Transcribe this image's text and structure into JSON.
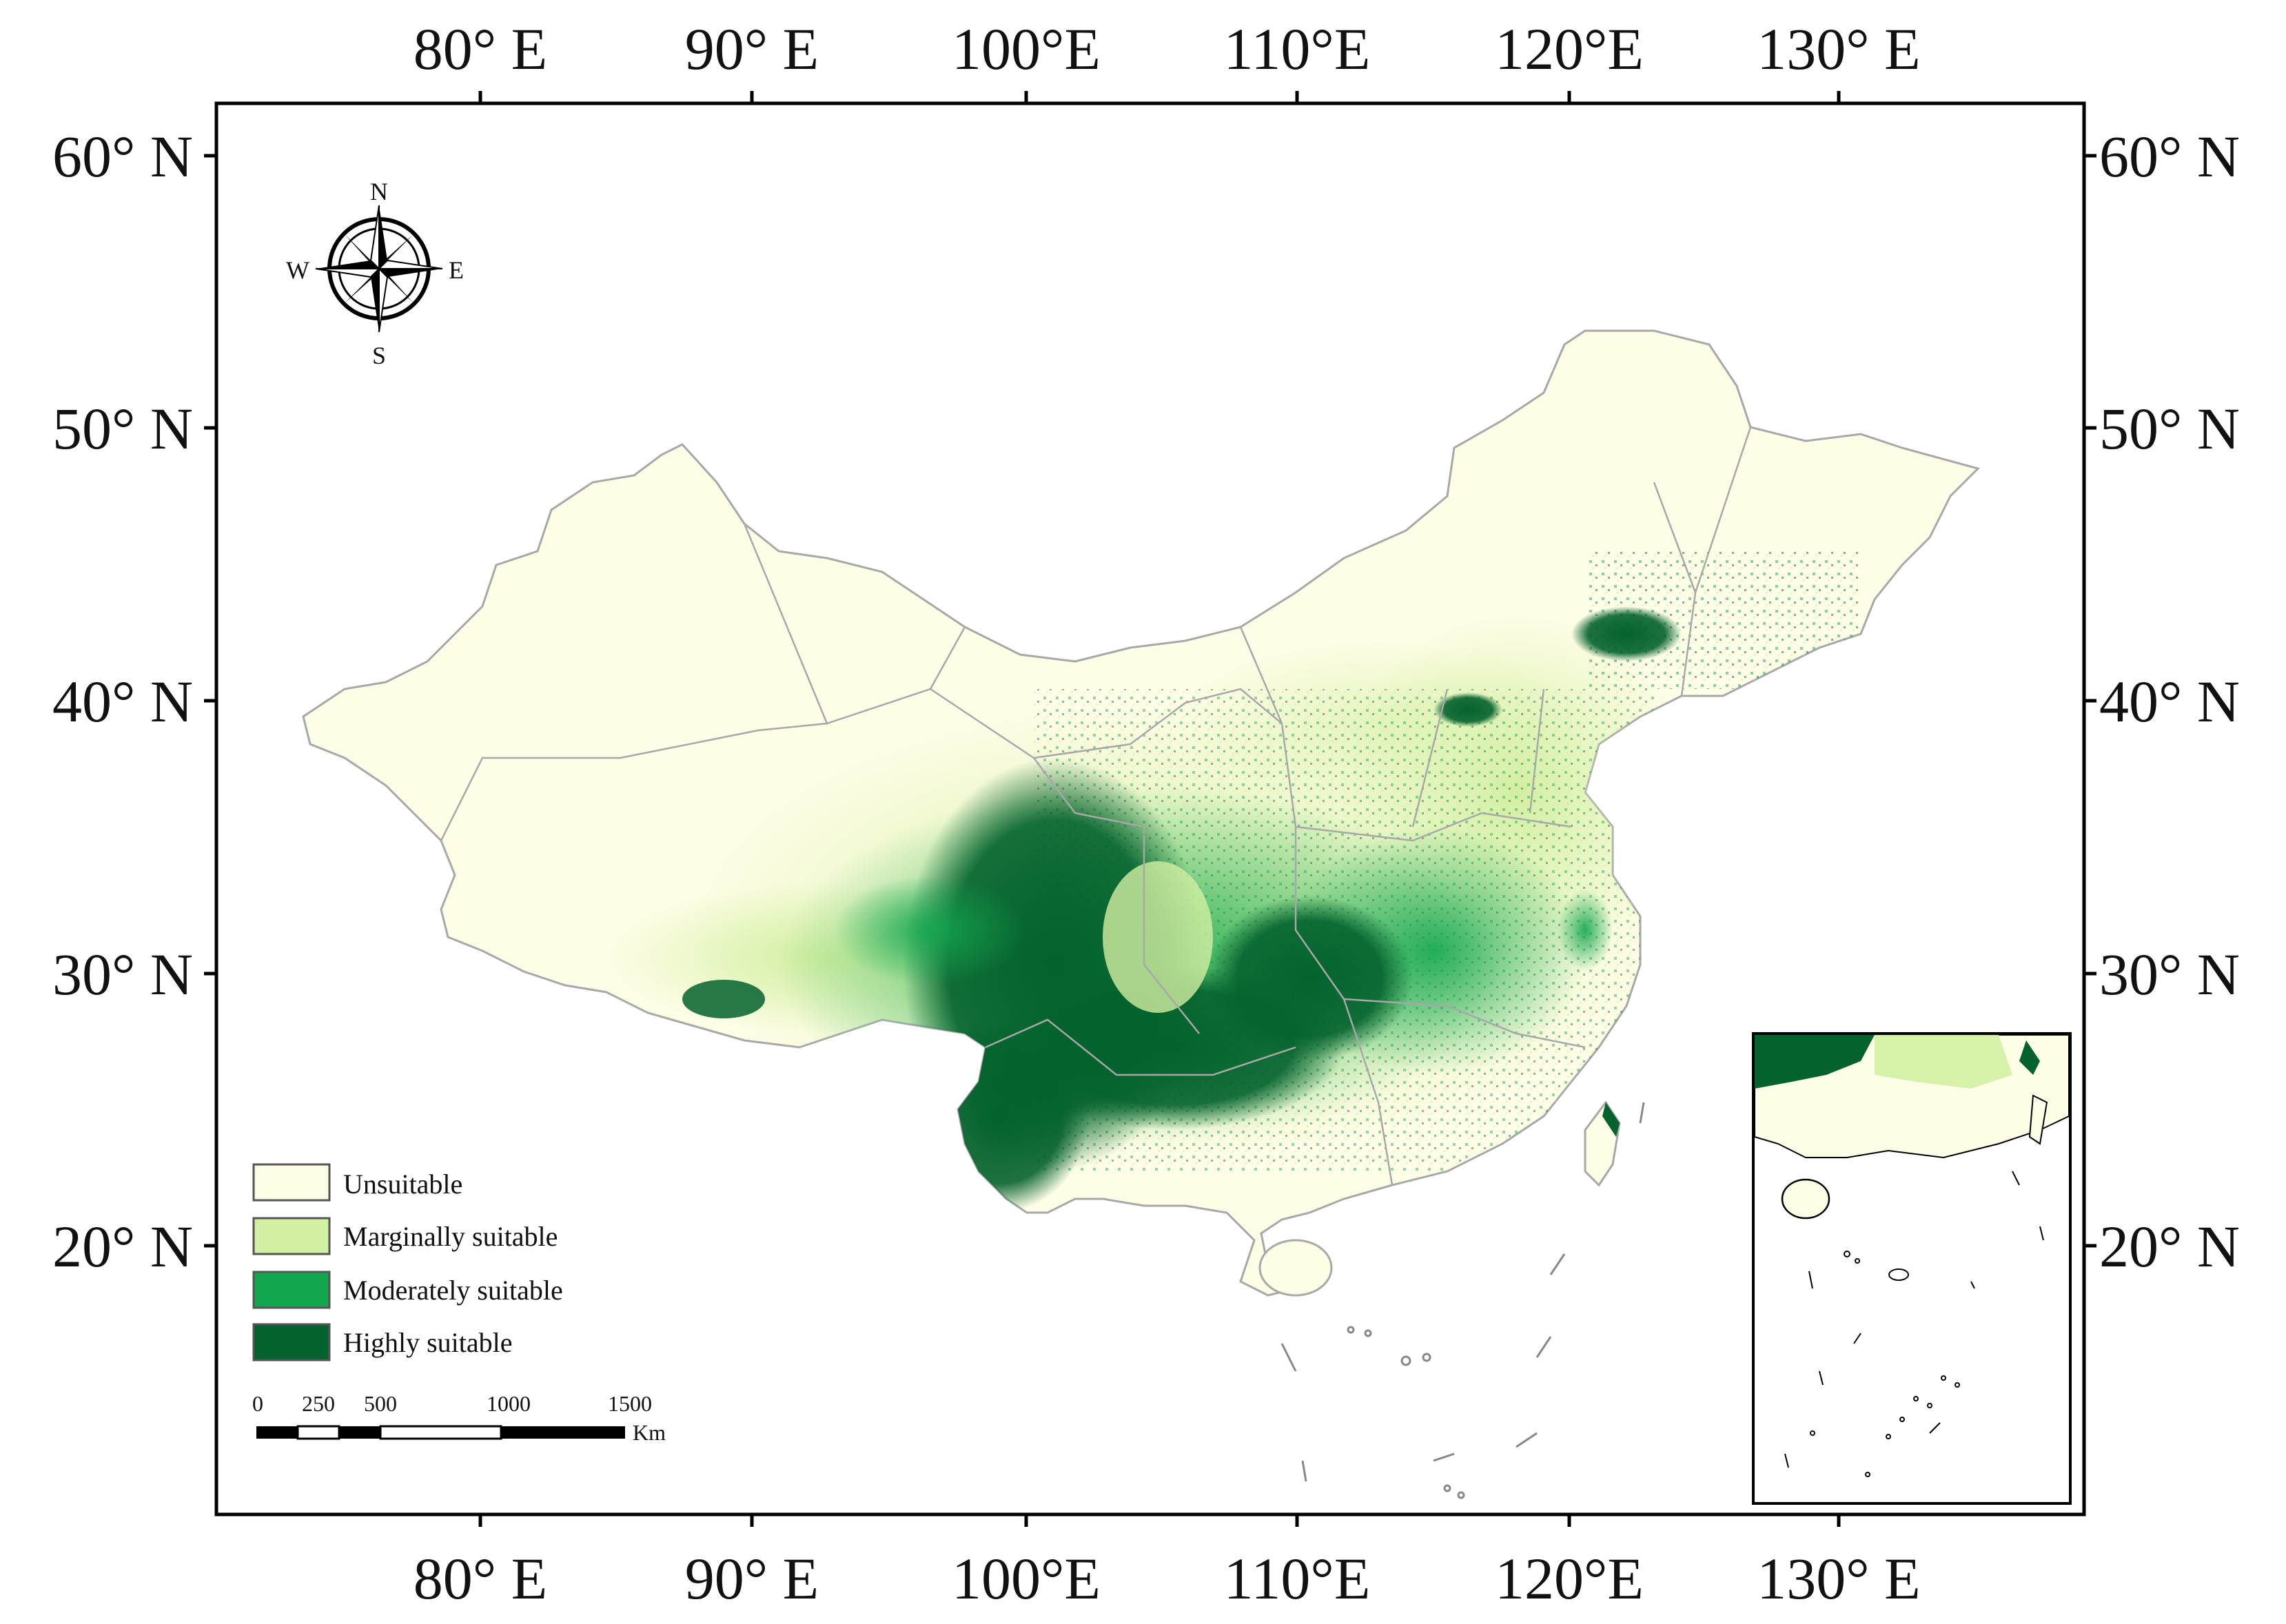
{
  "longitude_labels": [
    "80° E",
    "90° E",
    "100°E",
    "110°E",
    "120°E",
    "130° E"
  ],
  "latitude_labels": [
    "60° N",
    "50° N",
    "40° N",
    "30° N",
    "20° N"
  ],
  "compass": {
    "north": "N",
    "south": "S",
    "east": "E",
    "west": "W"
  },
  "legend": [
    {
      "label": "Unsuitable",
      "color": "#fefde6"
    },
    {
      "label": "Marginally suitable",
      "color": "#d2efa2"
    },
    {
      "label": "Moderately suitable",
      "color": "#12a64f"
    },
    {
      "label": "Highly suitable",
      "color": "#04622d"
    }
  ],
  "scale_bar": {
    "labels": [
      "0",
      "250",
      "500",
      "1000",
      "1500"
    ],
    "unit": "Km"
  },
  "colors": {
    "unsuitable": "#fefde6",
    "marginal": "#d2efa2",
    "moderate": "#12a64f",
    "high": "#04622d",
    "border": "#a8a8a8"
  }
}
